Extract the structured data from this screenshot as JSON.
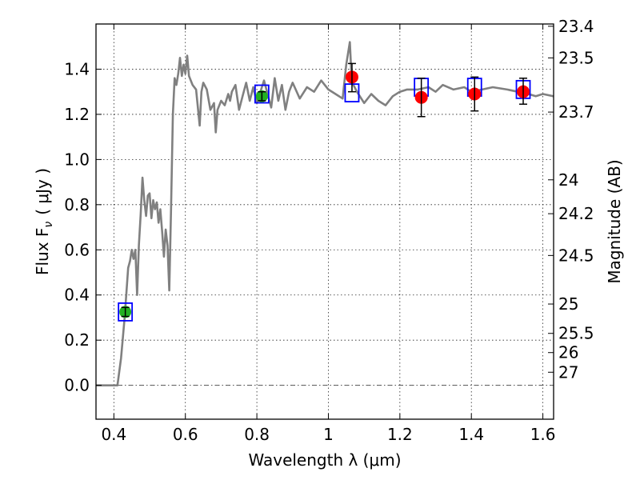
{
  "chart_data": {
    "type": "line",
    "xlabel": "Wavelength  λ (μm)",
    "ylabel": "Flux  F",
    "ylabel_sub": "ν",
    "ylabel_units": "( μJy )",
    "ylabel_right": "Magnitude (AB)",
    "xlim": [
      0.35,
      1.63
    ],
    "ylim": [
      -0.15,
      1.6
    ],
    "grid": true,
    "x_ticks": [
      {
        "value": 0.4,
        "label": "0.4"
      },
      {
        "value": 0.6,
        "label": "0.6"
      },
      {
        "value": 0.8,
        "label": "0.8"
      },
      {
        "value": 1.0,
        "label": "1"
      },
      {
        "value": 1.2,
        "label": "1.2"
      },
      {
        "value": 1.4,
        "label": "1.4"
      },
      {
        "value": 1.6,
        "label": "1.6"
      }
    ],
    "y_ticks": [
      {
        "value": 0.0,
        "label": "0.0"
      },
      {
        "value": 0.2,
        "label": "0.2"
      },
      {
        "value": 0.4,
        "label": "0.4"
      },
      {
        "value": 0.6,
        "label": "0.6"
      },
      {
        "value": 0.8,
        "label": "0.8"
      },
      {
        "value": 1.0,
        "label": "1.0"
      },
      {
        "value": 1.2,
        "label": "1.2"
      },
      {
        "value": 1.4,
        "label": "1.4"
      }
    ],
    "right_ticks": [
      {
        "flux": 1.59,
        "label": "23.4"
      },
      {
        "flux": 1.45,
        "label": "23.5"
      },
      {
        "flux": 1.21,
        "label": "23.7"
      },
      {
        "flux": 0.91,
        "label": "24"
      },
      {
        "flux": 0.76,
        "label": "24.2"
      },
      {
        "flux": 0.575,
        "label": "24.5"
      },
      {
        "flux": 0.36,
        "label": "25"
      },
      {
        "flux": 0.23,
        "label": "25.5"
      },
      {
        "flux": 0.145,
        "label": "26"
      },
      {
        "flux": 0.058,
        "label": "27"
      }
    ],
    "zero_line": 0.0,
    "model_spectrum": {
      "color": "#808080",
      "x": [
        0.35,
        0.41,
        0.42,
        0.43,
        0.44,
        0.445,
        0.45,
        0.455,
        0.46,
        0.465,
        0.47,
        0.475,
        0.48,
        0.485,
        0.49,
        0.495,
        0.5,
        0.505,
        0.51,
        0.515,
        0.52,
        0.525,
        0.53,
        0.535,
        0.54,
        0.545,
        0.55,
        0.555,
        0.56,
        0.565,
        0.57,
        0.575,
        0.58,
        0.585,
        0.59,
        0.595,
        0.6,
        0.605,
        0.61,
        0.62,
        0.63,
        0.64,
        0.645,
        0.65,
        0.66,
        0.67,
        0.68,
        0.685,
        0.69,
        0.7,
        0.71,
        0.72,
        0.725,
        0.73,
        0.74,
        0.75,
        0.76,
        0.77,
        0.78,
        0.79,
        0.8,
        0.82,
        0.84,
        0.85,
        0.86,
        0.87,
        0.88,
        0.89,
        0.9,
        0.92,
        0.94,
        0.96,
        0.98,
        1.0,
        1.02,
        1.04,
        1.05,
        1.06,
        1.065,
        1.07,
        1.08,
        1.1,
        1.12,
        1.14,
        1.16,
        1.18,
        1.2,
        1.22,
        1.25,
        1.28,
        1.3,
        1.32,
        1.35,
        1.38,
        1.4,
        1.43,
        1.46,
        1.5,
        1.53,
        1.56,
        1.58,
        1.6,
        1.63
      ],
      "y": [
        0.0,
        0.0,
        0.12,
        0.3,
        0.52,
        0.55,
        0.6,
        0.56,
        0.6,
        0.4,
        0.62,
        0.76,
        0.92,
        0.82,
        0.75,
        0.84,
        0.85,
        0.74,
        0.82,
        0.78,
        0.81,
        0.72,
        0.78,
        0.68,
        0.57,
        0.69,
        0.62,
        0.42,
        0.78,
        1.2,
        1.36,
        1.33,
        1.38,
        1.45,
        1.37,
        1.42,
        1.38,
        1.46,
        1.37,
        1.33,
        1.31,
        1.15,
        1.3,
        1.34,
        1.31,
        1.22,
        1.25,
        1.12,
        1.22,
        1.26,
        1.24,
        1.29,
        1.26,
        1.3,
        1.33,
        1.22,
        1.28,
        1.34,
        1.26,
        1.32,
        1.25,
        1.35,
        1.23,
        1.36,
        1.26,
        1.33,
        1.22,
        1.3,
        1.34,
        1.27,
        1.32,
        1.3,
        1.35,
        1.31,
        1.29,
        1.27,
        1.42,
        1.52,
        1.36,
        1.33,
        1.3,
        1.25,
        1.29,
        1.26,
        1.24,
        1.28,
        1.3,
        1.31,
        1.31,
        1.32,
        1.3,
        1.33,
        1.31,
        1.32,
        1.3,
        1.31,
        1.32,
        1.31,
        1.3,
        1.29,
        1.28,
        1.29,
        1.28
      ]
    },
    "green_points": {
      "color": "#22b022",
      "points": [
        {
          "x": 0.432,
          "y": 0.325,
          "yerr": 0.02
        },
        {
          "x": 0.814,
          "y": 1.28,
          "yerr": 0.02
        }
      ]
    },
    "red_points": {
      "color": "#ff0000",
      "points": [
        {
          "x": 1.066,
          "y": 1.365,
          "ylo": 1.3,
          "yhi": 1.425
        },
        {
          "x": 1.26,
          "y": 1.275,
          "ylo": 1.19,
          "yhi": 1.36
        },
        {
          "x": 1.409,
          "y": 1.29,
          "ylo": 1.215,
          "yhi": 1.365
        },
        {
          "x": 1.545,
          "y": 1.3,
          "ylo": 1.245,
          "yhi": 1.36
        }
      ]
    },
    "model_boxes": {
      "color": "#0000ff",
      "points": [
        {
          "x": 0.432,
          "y": 0.325
        },
        {
          "x": 0.814,
          "y": 1.29
        },
        {
          "x": 1.066,
          "y": 1.295
        },
        {
          "x": 1.26,
          "y": 1.32
        },
        {
          "x": 1.409,
          "y": 1.32
        },
        {
          "x": 1.545,
          "y": 1.31
        }
      ]
    }
  }
}
